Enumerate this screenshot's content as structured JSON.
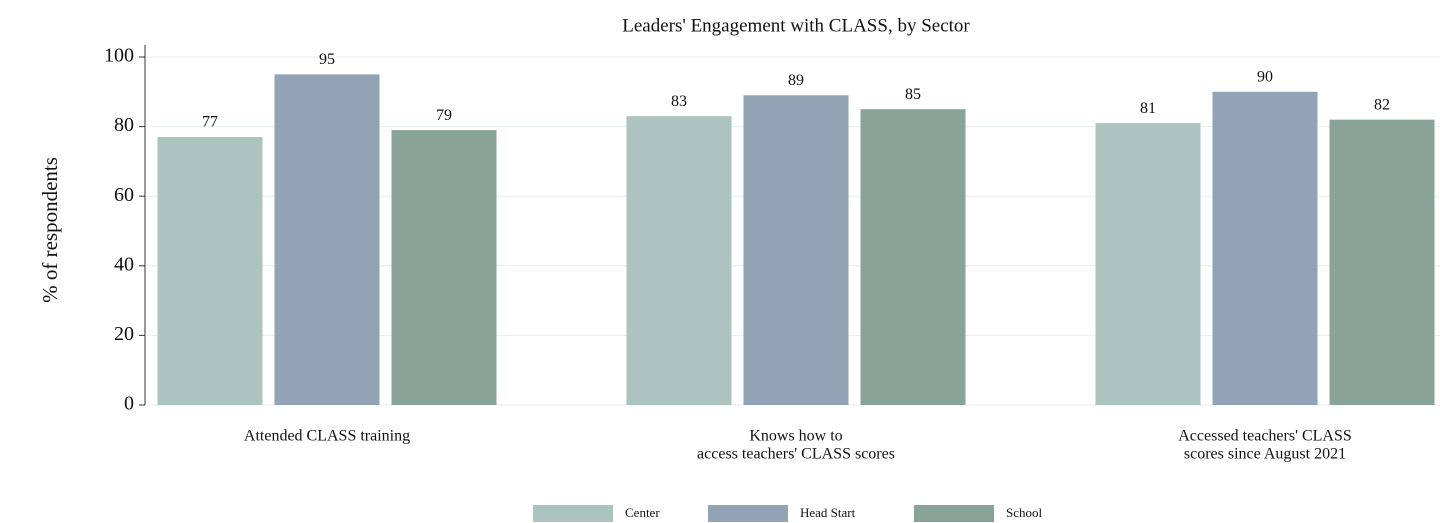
{
  "chart_data": {
    "type": "bar",
    "title": "Leaders' Engagement with CLASS, by Sector",
    "y_label": "% of respondents",
    "categories": [
      [
        "Attended CLASS training"
      ],
      [
        "Knows how to",
        "access teachers' CLASS scores"
      ],
      [
        "Accessed teachers' CLASS",
        "scores since August 2021"
      ]
    ],
    "series": [
      {
        "name": "Center",
        "color": "#adc3bf",
        "values": [
          77,
          83,
          81
        ]
      },
      {
        "name": "Head Start",
        "color": "#91a3b5",
        "values": [
          95,
          89,
          90
        ]
      },
      {
        "name": "School",
        "color": "#89a399",
        "values": [
          79,
          85,
          82
        ]
      }
    ],
    "ylim": [
      0,
      100
    ],
    "yticks": [
      0,
      20,
      40,
      60,
      80,
      100
    ],
    "grid": true,
    "legend": "bottom"
  }
}
